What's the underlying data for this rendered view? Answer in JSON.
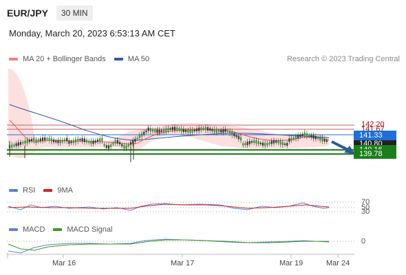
{
  "header": {
    "pair": "EUR/JPY",
    "timeframe": "30 MIN"
  },
  "datetime": "Monday, March 20, 2023 6:53:13 AM CET",
  "legend_main": [
    {
      "label": "MA 20 + Bollinger Bands",
      "color": "#f08080"
    },
    {
      "label": "MA 50",
      "color": "#2c5aa0"
    }
  ],
  "credit": "Research © 2023 Trading Central",
  "price_labels": {
    "r2": "142.20",
    "r1": "141.67",
    "current": "141.33",
    "s_hidden": "140.80",
    "s1": "140.16",
    "s2": "139.78"
  },
  "colors": {
    "resistance": "#c00000",
    "support": "#1a7f1a",
    "current": "#1e6fd9",
    "dark": "#222222"
  },
  "legend_rsi": [
    {
      "label": "RSI",
      "color": "#5b7fd9"
    },
    {
      "label": "9MA",
      "color": "#d62020"
    }
  ],
  "rsi_levels": {
    "upper": "70",
    "mid": "50",
    "lower": "30"
  },
  "legend_macd": [
    {
      "label": "MACD",
      "color": "#5b7fd9"
    },
    {
      "label": "MACD Signal",
      "color": "#3a9a1a"
    }
  ],
  "macd_zero": "0",
  "x_axis": [
    "Mar 16",
    "Mar 17",
    "Mar 19",
    "Mar 24"
  ]
}
